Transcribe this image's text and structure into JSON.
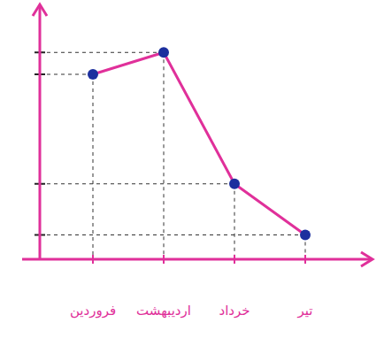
{
  "chart_data": {
    "type": "line",
    "categories": [
      "فروردین",
      "اردیبهشت",
      "خرداد",
      "تیر"
    ],
    "values": [
      7.6,
      8.5,
      3.1,
      1.0
    ],
    "color": "#e0309a",
    "marker": "circle",
    "ylim": [
      0,
      10
    ],
    "yticks": [
      1.0,
      3.1,
      7.6,
      8.5
    ],
    "grid": false,
    "tick_labels": "x"
  }
}
